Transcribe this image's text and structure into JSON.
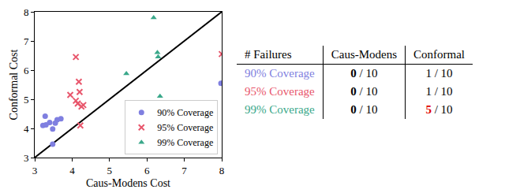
{
  "chart_data": {
    "type": "scatter",
    "x_label": "Caus-Modens Cost",
    "y_label": "Conformal Cost",
    "xlim": [
      3,
      8
    ],
    "ylim": [
      3,
      8
    ],
    "xticks": [
      3,
      4,
      5,
      6,
      7,
      8
    ],
    "yticks": [
      3,
      4,
      5,
      6,
      7,
      8
    ],
    "grid": false,
    "legend": "lower right",
    "series": [
      {
        "type": "line",
        "color": "#000000",
        "x": [
          3,
          8
        ],
        "values": [
          3,
          8
        ]
      },
      {
        "name": "90% Coverage",
        "color": "#7f7fe0",
        "marker": "circle",
        "x": [
          3.22,
          3.3,
          3.28,
          3.4,
          3.48,
          3.6,
          3.7,
          3.48,
          3.55,
          7.98
        ],
        "values": [
          4.1,
          4.12,
          4.42,
          4.2,
          3.98,
          4.3,
          4.33,
          3.46,
          4.18,
          5.55
        ]
      },
      {
        "name": "95% Coverage",
        "color": "#e8566c",
        "marker": "x",
        "x": [
          3.95,
          4.1,
          4.15,
          4.1,
          4.18,
          4.2,
          4.25,
          4.22,
          4.3,
          8.0
        ],
        "values": [
          5.15,
          4.95,
          4.85,
          6.45,
          5.6,
          5.25,
          4.75,
          4.1,
          4.8,
          6.55
        ]
      },
      {
        "name": "99% Coverage",
        "color": "#3aa88a",
        "marker": "triangle-up",
        "x": [
          5.45,
          6.18,
          6.28,
          6.3,
          6.35
        ],
        "values": [
          5.88,
          7.8,
          6.6,
          6.45,
          5.1
        ]
      }
    ]
  },
  "table": {
    "header": [
      "# Failures",
      "Caus-Modens",
      "Conformal"
    ],
    "rows": [
      {
        "label": "90% Coverage",
        "color": "#7f7fe0",
        "cells": [
          [
            {
              "text": "0",
              "bold": true
            },
            {
              "text": " / 10"
            }
          ],
          [
            {
              "text": "1 / 10"
            }
          ]
        ]
      },
      {
        "label": "95% Coverage",
        "color": "#e8566c",
        "cells": [
          [
            {
              "text": "0",
              "bold": true
            },
            {
              "text": " / 10"
            }
          ],
          [
            {
              "text": "1 / 10"
            }
          ]
        ]
      },
      {
        "label": "99% Coverage",
        "color": "#3aa88a",
        "cells": [
          [
            {
              "text": "0",
              "bold": true
            },
            {
              "text": " / 10"
            }
          ],
          [
            {
              "text": "5",
              "bold": true,
              "color": "#e00000"
            },
            {
              "text": " / 10"
            }
          ]
        ]
      }
    ]
  }
}
